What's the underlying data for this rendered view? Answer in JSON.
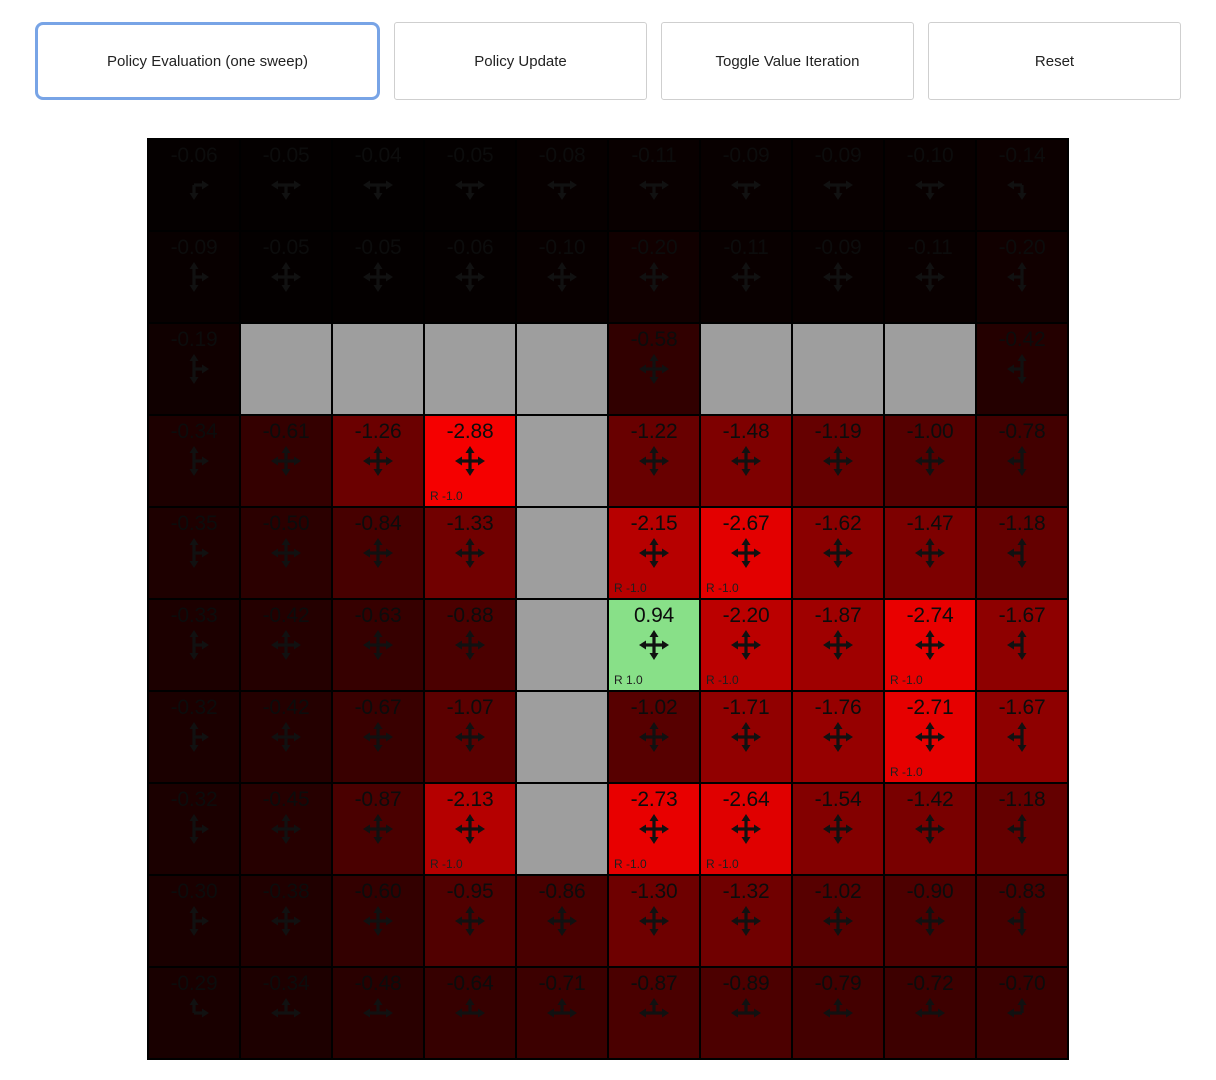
{
  "toolbar": {
    "buttons": [
      {
        "label": "Policy Evaluation (one sweep)",
        "active": true
      },
      {
        "label": "Policy Update",
        "active": false
      },
      {
        "label": "Toggle Value Iteration",
        "active": false
      },
      {
        "label": "Reset",
        "active": false
      }
    ]
  },
  "colors": {
    "active_button_border": "#78a4e6",
    "wall": "#9e9e9e",
    "negative_base": "#ff0000",
    "positive_base": "#90ee90",
    "grid_line": "#000000"
  },
  "grid": {
    "rows": 10,
    "cols": 10,
    "cells": [
      [
        {
          "v": "-0.06",
          "a": "DR"
        },
        {
          "v": "-0.05",
          "a": "DLR"
        },
        {
          "v": "-0.04",
          "a": "DLR"
        },
        {
          "v": "-0.05",
          "a": "DLR"
        },
        {
          "v": "-0.08",
          "a": "DLR"
        },
        {
          "v": "-0.11",
          "a": "DLR"
        },
        {
          "v": "-0.09",
          "a": "DLR"
        },
        {
          "v": "-0.09",
          "a": "DLR"
        },
        {
          "v": "-0.10",
          "a": "DLR"
        },
        {
          "v": "-0.14",
          "a": "DL"
        }
      ],
      [
        {
          "v": "-0.09",
          "a": "UDR"
        },
        {
          "v": "-0.05",
          "a": "UDLR"
        },
        {
          "v": "-0.05",
          "a": "UDLR"
        },
        {
          "v": "-0.06",
          "a": "UDLR"
        },
        {
          "v": "-0.10",
          "a": "UDLR"
        },
        {
          "v": "-0.20",
          "a": "UDLR"
        },
        {
          "v": "-0.11",
          "a": "UDLR"
        },
        {
          "v": "-0.09",
          "a": "UDLR"
        },
        {
          "v": "-0.11",
          "a": "UDLR"
        },
        {
          "v": "-0.20",
          "a": "UDL"
        }
      ],
      [
        {
          "v": "-0.19",
          "a": "UDR"
        },
        {
          "w": true
        },
        {
          "w": true
        },
        {
          "w": true
        },
        {
          "w": true
        },
        {
          "v": "-0.58",
          "a": "UDLR"
        },
        {
          "w": true
        },
        {
          "w": true
        },
        {
          "w": true
        },
        {
          "v": "-0.42",
          "a": "UDL"
        }
      ],
      [
        {
          "v": "-0.34",
          "a": "UDR"
        },
        {
          "v": "-0.61",
          "a": "UDLR"
        },
        {
          "v": "-1.26",
          "a": "UDLR"
        },
        {
          "v": "-2.88",
          "a": "UDLR",
          "r": "R -1.0"
        },
        {
          "w": true
        },
        {
          "v": "-1.22",
          "a": "UDLR"
        },
        {
          "v": "-1.48",
          "a": "UDLR"
        },
        {
          "v": "-1.19",
          "a": "UDLR"
        },
        {
          "v": "-1.00",
          "a": "UDLR"
        },
        {
          "v": "-0.78",
          "a": "UDL"
        }
      ],
      [
        {
          "v": "-0.35",
          "a": "UDR"
        },
        {
          "v": "-0.50",
          "a": "UDLR"
        },
        {
          "v": "-0.84",
          "a": "UDLR"
        },
        {
          "v": "-1.33",
          "a": "UDLR"
        },
        {
          "w": true
        },
        {
          "v": "-2.15",
          "a": "UDLR",
          "r": "R -1.0"
        },
        {
          "v": "-2.67",
          "a": "UDLR",
          "r": "R -1.0"
        },
        {
          "v": "-1.62",
          "a": "UDLR"
        },
        {
          "v": "-1.47",
          "a": "UDLR"
        },
        {
          "v": "-1.18",
          "a": "UDL"
        }
      ],
      [
        {
          "v": "-0.33",
          "a": "UDR"
        },
        {
          "v": "-0.42",
          "a": "UDLR"
        },
        {
          "v": "-0.63",
          "a": "UDLR"
        },
        {
          "v": "-0.88",
          "a": "UDLR"
        },
        {
          "w": true
        },
        {
          "v": "0.94",
          "a": "UDLR",
          "r": "R 1.0"
        },
        {
          "v": "-2.20",
          "a": "UDLR",
          "r": "R -1.0"
        },
        {
          "v": "-1.87",
          "a": "UDLR"
        },
        {
          "v": "-2.74",
          "a": "UDLR",
          "r": "R -1.0"
        },
        {
          "v": "-1.67",
          "a": "UDL"
        }
      ],
      [
        {
          "v": "-0.32",
          "a": "UDR"
        },
        {
          "v": "-0.42",
          "a": "UDLR"
        },
        {
          "v": "-0.67",
          "a": "UDLR"
        },
        {
          "v": "-1.07",
          "a": "UDLR"
        },
        {
          "w": true
        },
        {
          "v": "-1.02",
          "a": "UDLR"
        },
        {
          "v": "-1.71",
          "a": "UDLR"
        },
        {
          "v": "-1.76",
          "a": "UDLR"
        },
        {
          "v": "-2.71",
          "a": "UDLR",
          "r": "R -1.0"
        },
        {
          "v": "-1.67",
          "a": "UDL"
        }
      ],
      [
        {
          "v": "-0.32",
          "a": "UDR"
        },
        {
          "v": "-0.45",
          "a": "UDLR"
        },
        {
          "v": "-0.87",
          "a": "UDLR"
        },
        {
          "v": "-2.13",
          "a": "UDLR",
          "r": "R -1.0"
        },
        {
          "w": true
        },
        {
          "v": "-2.73",
          "a": "UDLR",
          "r": "R -1.0"
        },
        {
          "v": "-2.64",
          "a": "UDLR",
          "r": "R -1.0"
        },
        {
          "v": "-1.54",
          "a": "UDLR"
        },
        {
          "v": "-1.42",
          "a": "UDLR"
        },
        {
          "v": "-1.18",
          "a": "UDL"
        }
      ],
      [
        {
          "v": "-0.30",
          "a": "UDR"
        },
        {
          "v": "-0.38",
          "a": "UDLR"
        },
        {
          "v": "-0.60",
          "a": "UDLR"
        },
        {
          "v": "-0.95",
          "a": "UDLR"
        },
        {
          "v": "-0.86",
          "a": "UDLR"
        },
        {
          "v": "-1.30",
          "a": "UDLR"
        },
        {
          "v": "-1.32",
          "a": "UDLR"
        },
        {
          "v": "-1.02",
          "a": "UDLR"
        },
        {
          "v": "-0.90",
          "a": "UDLR"
        },
        {
          "v": "-0.83",
          "a": "UDL"
        }
      ],
      [
        {
          "v": "-0.29",
          "a": "UR"
        },
        {
          "v": "-0.34",
          "a": "ULR"
        },
        {
          "v": "-0.48",
          "a": "ULR"
        },
        {
          "v": "-0.64",
          "a": "ULR"
        },
        {
          "v": "-0.71",
          "a": "ULR"
        },
        {
          "v": "-0.87",
          "a": "ULR"
        },
        {
          "v": "-0.89",
          "a": "ULR"
        },
        {
          "v": "-0.79",
          "a": "ULR"
        },
        {
          "v": "-0.72",
          "a": "ULR"
        },
        {
          "v": "-0.70",
          "a": "UL"
        }
      ]
    ]
  }
}
